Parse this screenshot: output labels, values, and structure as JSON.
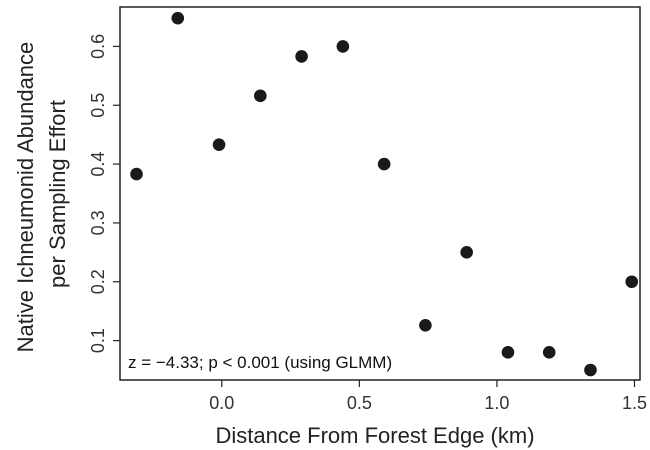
{
  "chart_data": {
    "type": "scatter",
    "xlabel": "Distance From Forest Edge (km)",
    "ylabel_lines": [
      "Native Ichneumonid Abundance",
      "per Sampling Effort"
    ],
    "annotation": "z = −4.33; p < 0.001 (using GLMM)",
    "xlim": [
      -0.37,
      1.52
    ],
    "ylim": [
      0.033,
      0.667
    ],
    "x_ticks": [
      0.0,
      0.5,
      1.0,
      1.5
    ],
    "x_tick_labels": [
      "0.0",
      "0.5",
      "1.0",
      "1.5"
    ],
    "y_ticks": [
      0.1,
      0.2,
      0.3,
      0.4,
      0.5,
      0.6
    ],
    "y_tick_labels": [
      "0.1",
      "0.2",
      "0.3",
      "0.4",
      "0.5",
      "0.6"
    ],
    "grid": false,
    "marker_color": "#1a1a1a",
    "points": [
      {
        "x": -0.31,
        "y": 0.383
      },
      {
        "x": -0.16,
        "y": 0.648
      },
      {
        "x": -0.01,
        "y": 0.433
      },
      {
        "x": 0.14,
        "y": 0.516
      },
      {
        "x": 0.29,
        "y": 0.583
      },
      {
        "x": 0.44,
        "y": 0.6
      },
      {
        "x": 0.59,
        "y": 0.4
      },
      {
        "x": 0.74,
        "y": 0.126
      },
      {
        "x": 0.89,
        "y": 0.25
      },
      {
        "x": 1.04,
        "y": 0.08
      },
      {
        "x": 1.19,
        "y": 0.08
      },
      {
        "x": 1.34,
        "y": 0.05
      },
      {
        "x": 1.49,
        "y": 0.2
      }
    ]
  }
}
